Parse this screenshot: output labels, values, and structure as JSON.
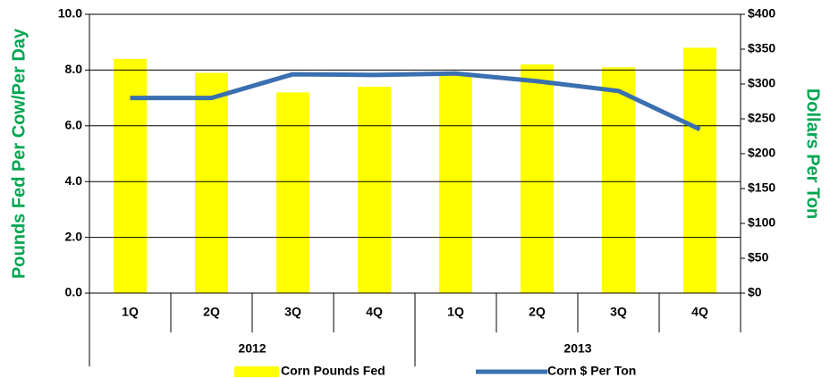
{
  "chart_data": {
    "type": "bar-line",
    "groups": [
      {
        "name": "2012",
        "categories": [
          "1Q",
          "2Q",
          "3Q",
          "4Q"
        ]
      },
      {
        "name": "2013",
        "categories": [
          "1Q",
          "2Q",
          "3Q",
          "4Q"
        ]
      }
    ],
    "y_label": "Pounds Fed Per Cow/Per Day",
    "y2_label": "Dollars Per Ton",
    "series": [
      {
        "name": "Corn Pounds Fed",
        "color": "#ffff00",
        "kind": "bar",
        "values": [
          8.4,
          7.9,
          7.2,
          7.4,
          7.8,
          8.2,
          8.1,
          8.8
        ]
      },
      {
        "name": "Corn $ Per Ton",
        "color": "#3a6fb0",
        "kind": "line",
        "axis": "y2",
        "values": [
          280,
          280,
          314,
          313,
          315,
          304,
          290,
          235
        ]
      }
    ],
    "ylim": [
      0,
      10
    ],
    "yticks": [
      {
        "value": 0,
        "label": "0.0"
      },
      {
        "value": 2,
        "label": "2.0"
      },
      {
        "value": 4,
        "label": "4.0"
      },
      {
        "value": 6,
        "label": "6.0"
      },
      {
        "value": 8,
        "label": "8.0"
      },
      {
        "value": 10,
        "label": "10.0"
      }
    ],
    "y2lim": [
      0,
      400
    ],
    "y2ticks": [
      {
        "value": 0,
        "label": "$0"
      },
      {
        "value": 50,
        "label": "$50"
      },
      {
        "value": 100,
        "label": "$100"
      },
      {
        "value": 150,
        "label": "$150"
      },
      {
        "value": 200,
        "label": "$200"
      },
      {
        "value": 250,
        "label": "$250"
      },
      {
        "value": 300,
        "label": "$300"
      },
      {
        "value": 350,
        "label": "$350"
      },
      {
        "value": 400,
        "label": "$400"
      }
    ],
    "grid": true,
    "legend": "bottom"
  }
}
